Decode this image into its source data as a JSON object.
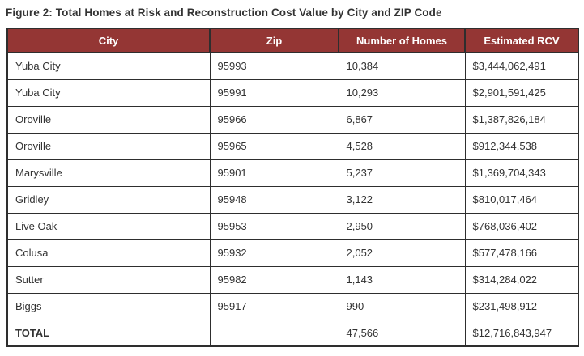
{
  "title": "Figure 2: Total Homes at Risk and Reconstruction Cost Value by City and ZIP Code",
  "table": {
    "columns": [
      "City",
      "Zip",
      "Number of Homes",
      "Estimated RCV"
    ],
    "rows": [
      {
        "city": "Yuba City",
        "zip": "95993",
        "homes": "10,384",
        "rcv": "$3,444,062,491"
      },
      {
        "city": "Yuba City",
        "zip": "95991",
        "homes": "10,293",
        "rcv": "$2,901,591,425"
      },
      {
        "city": "Oroville",
        "zip": "95966",
        "homes": "6,867",
        "rcv": "$1,387,826,184"
      },
      {
        "city": "Oroville",
        "zip": "95965",
        "homes": "4,528",
        "rcv": "$912,344,538"
      },
      {
        "city": "Marysville",
        "zip": "95901",
        "homes": "5,237",
        "rcv": "$1,369,704,343"
      },
      {
        "city": "Gridley",
        "zip": "95948",
        "homes": "3,122",
        "rcv": "$810,017,464"
      },
      {
        "city": "Live Oak",
        "zip": "95953",
        "homes": "2,950",
        "rcv": "$768,036,402"
      },
      {
        "city": "Colusa",
        "zip": "95932",
        "homes": "2,052",
        "rcv": "$577,478,166"
      },
      {
        "city": "Sutter",
        "zip": "95982",
        "homes": "1,143",
        "rcv": "$314,284,022"
      },
      {
        "city": "Biggs",
        "zip": "95917",
        "homes": "990",
        "rcv": "$231,498,912"
      }
    ],
    "total": {
      "label": "TOTAL",
      "zip": "",
      "homes": "47,566",
      "rcv": "$12,716,843,947"
    }
  },
  "colors": {
    "header_bg": "#943634",
    "header_text": "#ffffff",
    "border": "#2e2e2e",
    "text": "#333333"
  },
  "chart_data": {
    "type": "table",
    "title": "Figure 2: Total Homes at Risk and Reconstruction Cost Value by City and ZIP Code",
    "columns": [
      "City",
      "Zip",
      "Number of Homes",
      "Estimated RCV"
    ],
    "rows": [
      [
        "Yuba City",
        "95993",
        10384,
        3444062491
      ],
      [
        "Yuba City",
        "95991",
        10293,
        2901591425
      ],
      [
        "Oroville",
        "95966",
        6867,
        1387826184
      ],
      [
        "Oroville",
        "95965",
        4528,
        912344538
      ],
      [
        "Marysville",
        "95901",
        5237,
        1369704343
      ],
      [
        "Gridley",
        "95948",
        3122,
        810017464
      ],
      [
        "Live Oak",
        "95953",
        2950,
        768036402
      ],
      [
        "Colusa",
        "95932",
        2052,
        577478166
      ],
      [
        "Sutter",
        "95982",
        1143,
        314284022
      ],
      [
        "Biggs",
        "95917",
        990,
        231498912
      ],
      [
        "TOTAL",
        "",
        47566,
        12716843947
      ]
    ]
  }
}
